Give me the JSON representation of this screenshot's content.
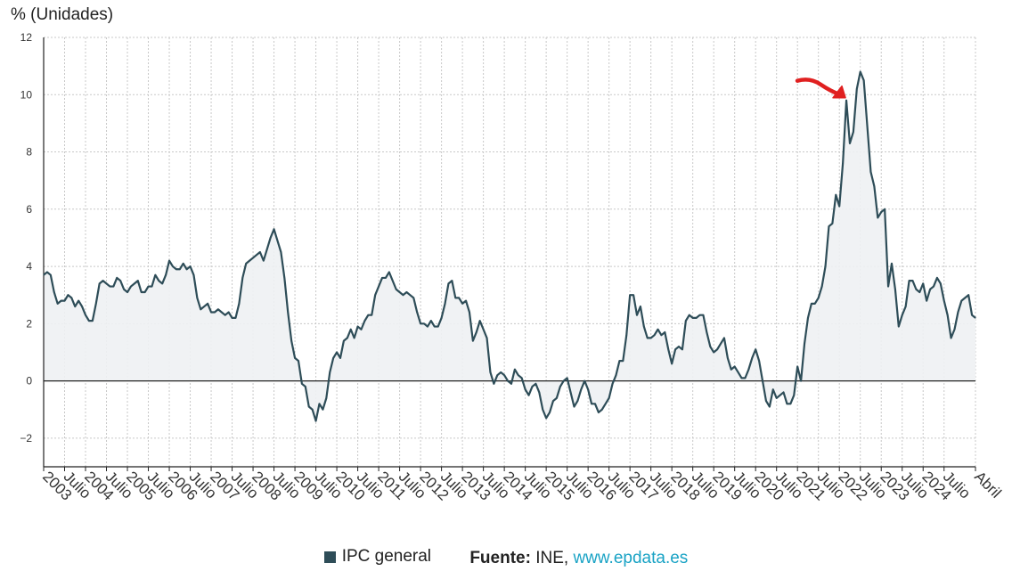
{
  "chart_data": {
    "type": "area",
    "ylabel": "% (Unidades)",
    "ylim": [
      -3,
      12
    ],
    "yticks": [
      -2,
      0,
      2,
      4,
      6,
      8,
      10,
      12
    ],
    "grid": true,
    "legend_position": "bottom",
    "xlim": [
      "2003-01",
      "2025-04"
    ],
    "x_tick_labels": [
      "2003",
      "Julio",
      "2004",
      "Julio",
      "2005",
      "Julio",
      "2006",
      "Julio",
      "2007",
      "Julio",
      "2008",
      "Julio",
      "2009",
      "Julio",
      "2010",
      "Julio",
      "2011",
      "Julio",
      "2012",
      "Julio",
      "2013",
      "Julio",
      "2014",
      "Julio",
      "2015",
      "Julio",
      "2016",
      "Julio",
      "2017",
      "Julio",
      "2018",
      "Julio",
      "2019",
      "Julio",
      "2020",
      "Julio",
      "2021",
      "Julio",
      "2022",
      "Julio",
      "2023",
      "Julio",
      "2024",
      "Julio",
      "Abril"
    ],
    "series": [
      {
        "name": "IPC general",
        "color": "#2e4d58",
        "points": [
          [
            "2003-01",
            3.7
          ],
          [
            "2003-02",
            3.8
          ],
          [
            "2003-03",
            3.7
          ],
          [
            "2003-04",
            3.1
          ],
          [
            "2003-05",
            2.7
          ],
          [
            "2003-06",
            2.8
          ],
          [
            "2003-07",
            2.8
          ],
          [
            "2003-08",
            3.0
          ],
          [
            "2003-09",
            2.9
          ],
          [
            "2003-10",
            2.6
          ],
          [
            "2003-11",
            2.8
          ],
          [
            "2003-12",
            2.6
          ],
          [
            "2004-01",
            2.3
          ],
          [
            "2004-02",
            2.1
          ],
          [
            "2004-03",
            2.1
          ],
          [
            "2004-04",
            2.7
          ],
          [
            "2004-05",
            3.4
          ],
          [
            "2004-06",
            3.5
          ],
          [
            "2004-07",
            3.4
          ],
          [
            "2004-08",
            3.3
          ],
          [
            "2004-09",
            3.3
          ],
          [
            "2004-10",
            3.6
          ],
          [
            "2004-11",
            3.5
          ],
          [
            "2004-12",
            3.2
          ],
          [
            "2005-01",
            3.1
          ],
          [
            "2005-02",
            3.3
          ],
          [
            "2005-03",
            3.4
          ],
          [
            "2005-04",
            3.5
          ],
          [
            "2005-05",
            3.1
          ],
          [
            "2005-06",
            3.1
          ],
          [
            "2005-07",
            3.3
          ],
          [
            "2005-08",
            3.3
          ],
          [
            "2005-09",
            3.7
          ],
          [
            "2005-10",
            3.5
          ],
          [
            "2005-11",
            3.4
          ],
          [
            "2005-12",
            3.7
          ],
          [
            "2006-01",
            4.2
          ],
          [
            "2006-02",
            4.0
          ],
          [
            "2006-03",
            3.9
          ],
          [
            "2006-04",
            3.9
          ],
          [
            "2006-05",
            4.1
          ],
          [
            "2006-06",
            3.9
          ],
          [
            "2006-07",
            4.0
          ],
          [
            "2006-08",
            3.7
          ],
          [
            "2006-09",
            2.9
          ],
          [
            "2006-10",
            2.5
          ],
          [
            "2006-11",
            2.6
          ],
          [
            "2006-12",
            2.7
          ],
          [
            "2007-01",
            2.4
          ],
          [
            "2007-02",
            2.4
          ],
          [
            "2007-03",
            2.5
          ],
          [
            "2007-04",
            2.4
          ],
          [
            "2007-05",
            2.3
          ],
          [
            "2007-06",
            2.4
          ],
          [
            "2007-07",
            2.2
          ],
          [
            "2007-08",
            2.2
          ],
          [
            "2007-09",
            2.7
          ],
          [
            "2007-10",
            3.6
          ],
          [
            "2007-11",
            4.1
          ],
          [
            "2007-12",
            4.2
          ],
          [
            "2008-01",
            4.3
          ],
          [
            "2008-02",
            4.4
          ],
          [
            "2008-03",
            4.5
          ],
          [
            "2008-04",
            4.2
          ],
          [
            "2008-05",
            4.6
          ],
          [
            "2008-06",
            5.0
          ],
          [
            "2008-07",
            5.3
          ],
          [
            "2008-08",
            4.9
          ],
          [
            "2008-09",
            4.5
          ],
          [
            "2008-10",
            3.6
          ],
          [
            "2008-11",
            2.4
          ],
          [
            "2008-12",
            1.4
          ],
          [
            "2009-01",
            0.8
          ],
          [
            "2009-02",
            0.7
          ],
          [
            "2009-03",
            -0.1
          ],
          [
            "2009-04",
            -0.2
          ],
          [
            "2009-05",
            -0.9
          ],
          [
            "2009-06",
            -1.0
          ],
          [
            "2009-07",
            -1.4
          ],
          [
            "2009-08",
            -0.8
          ],
          [
            "2009-09",
            -1.0
          ],
          [
            "2009-10",
            -0.6
          ],
          [
            "2009-11",
            0.3
          ],
          [
            "2009-12",
            0.8
          ],
          [
            "2010-01",
            1.0
          ],
          [
            "2010-02",
            0.8
          ],
          [
            "2010-03",
            1.4
          ],
          [
            "2010-04",
            1.5
          ],
          [
            "2010-05",
            1.8
          ],
          [
            "2010-06",
            1.5
          ],
          [
            "2010-07",
            1.9
          ],
          [
            "2010-08",
            1.8
          ],
          [
            "2010-09",
            2.1
          ],
          [
            "2010-10",
            2.3
          ],
          [
            "2010-11",
            2.3
          ],
          [
            "2010-12",
            3.0
          ],
          [
            "2011-01",
            3.3
          ],
          [
            "2011-02",
            3.6
          ],
          [
            "2011-03",
            3.6
          ],
          [
            "2011-04",
            3.8
          ],
          [
            "2011-05",
            3.5
          ],
          [
            "2011-06",
            3.2
          ],
          [
            "2011-07",
            3.1
          ],
          [
            "2011-08",
            3.0
          ],
          [
            "2011-09",
            3.1
          ],
          [
            "2011-10",
            3.0
          ],
          [
            "2011-11",
            2.9
          ],
          [
            "2011-12",
            2.4
          ],
          [
            "2012-01",
            2.0
          ],
          [
            "2012-02",
            2.0
          ],
          [
            "2012-03",
            1.9
          ],
          [
            "2012-04",
            2.1
          ],
          [
            "2012-05",
            1.9
          ],
          [
            "2012-06",
            1.9
          ],
          [
            "2012-07",
            2.2
          ],
          [
            "2012-08",
            2.7
          ],
          [
            "2012-09",
            3.4
          ],
          [
            "2012-10",
            3.5
          ],
          [
            "2012-11",
            2.9
          ],
          [
            "2012-12",
            2.9
          ],
          [
            "2013-01",
            2.7
          ],
          [
            "2013-02",
            2.8
          ],
          [
            "2013-03",
            2.4
          ],
          [
            "2013-04",
            1.4
          ],
          [
            "2013-05",
            1.7
          ],
          [
            "2013-06",
            2.1
          ],
          [
            "2013-07",
            1.8
          ],
          [
            "2013-08",
            1.5
          ],
          [
            "2013-09",
            0.3
          ],
          [
            "2013-10",
            -0.1
          ],
          [
            "2013-11",
            0.2
          ],
          [
            "2013-12",
            0.3
          ],
          [
            "2014-01",
            0.2
          ],
          [
            "2014-02",
            0.0
          ],
          [
            "2014-03",
            -0.1
          ],
          [
            "2014-04",
            0.4
          ],
          [
            "2014-05",
            0.2
          ],
          [
            "2014-06",
            0.1
          ],
          [
            "2014-07",
            -0.3
          ],
          [
            "2014-08",
            -0.5
          ],
          [
            "2014-09",
            -0.2
          ],
          [
            "2014-10",
            -0.1
          ],
          [
            "2014-11",
            -0.4
          ],
          [
            "2014-12",
            -1.0
          ],
          [
            "2015-01",
            -1.3
          ],
          [
            "2015-02",
            -1.1
          ],
          [
            "2015-03",
            -0.7
          ],
          [
            "2015-04",
            -0.6
          ],
          [
            "2015-05",
            -0.2
          ],
          [
            "2015-06",
            0.0
          ],
          [
            "2015-07",
            0.1
          ],
          [
            "2015-08",
            -0.4
          ],
          [
            "2015-09",
            -0.9
          ],
          [
            "2015-10",
            -0.7
          ],
          [
            "2015-11",
            -0.3
          ],
          [
            "2015-12",
            0.0
          ],
          [
            "2016-01",
            -0.3
          ],
          [
            "2016-02",
            -0.8
          ],
          [
            "2016-03",
            -0.8
          ],
          [
            "2016-04",
            -1.1
          ],
          [
            "2016-05",
            -1.0
          ],
          [
            "2016-06",
            -0.8
          ],
          [
            "2016-07",
            -0.6
          ],
          [
            "2016-08",
            -0.1
          ],
          [
            "2016-09",
            0.2
          ],
          [
            "2016-10",
            0.7
          ],
          [
            "2016-11",
            0.7
          ],
          [
            "2016-12",
            1.6
          ],
          [
            "2017-01",
            3.0
          ],
          [
            "2017-02",
            3.0
          ],
          [
            "2017-03",
            2.3
          ],
          [
            "2017-04",
            2.6
          ],
          [
            "2017-05",
            1.9
          ],
          [
            "2017-06",
            1.5
          ],
          [
            "2017-07",
            1.5
          ],
          [
            "2017-08",
            1.6
          ],
          [
            "2017-09",
            1.8
          ],
          [
            "2017-10",
            1.6
          ],
          [
            "2017-11",
            1.7
          ],
          [
            "2017-12",
            1.1
          ],
          [
            "2018-01",
            0.6
          ],
          [
            "2018-02",
            1.1
          ],
          [
            "2018-03",
            1.2
          ],
          [
            "2018-04",
            1.1
          ],
          [
            "2018-05",
            2.1
          ],
          [
            "2018-06",
            2.3
          ],
          [
            "2018-07",
            2.2
          ],
          [
            "2018-08",
            2.2
          ],
          [
            "2018-09",
            2.3
          ],
          [
            "2018-10",
            2.3
          ],
          [
            "2018-11",
            1.7
          ],
          [
            "2018-12",
            1.2
          ],
          [
            "2019-01",
            1.0
          ],
          [
            "2019-02",
            1.1
          ],
          [
            "2019-03",
            1.3
          ],
          [
            "2019-04",
            1.5
          ],
          [
            "2019-05",
            0.8
          ],
          [
            "2019-06",
            0.4
          ],
          [
            "2019-07",
            0.5
          ],
          [
            "2019-08",
            0.3
          ],
          [
            "2019-09",
            0.1
          ],
          [
            "2019-10",
            0.1
          ],
          [
            "2019-11",
            0.4
          ],
          [
            "2019-12",
            0.8
          ],
          [
            "2020-01",
            1.1
          ],
          [
            "2020-02",
            0.7
          ],
          [
            "2020-03",
            0.0
          ],
          [
            "2020-04",
            -0.7
          ],
          [
            "2020-05",
            -0.9
          ],
          [
            "2020-06",
            -0.3
          ],
          [
            "2020-07",
            -0.6
          ],
          [
            "2020-08",
            -0.5
          ],
          [
            "2020-09",
            -0.4
          ],
          [
            "2020-10",
            -0.8
          ],
          [
            "2020-11",
            -0.8
          ],
          [
            "2020-12",
            -0.5
          ],
          [
            "2021-01",
            0.5
          ],
          [
            "2021-02",
            0.0
          ],
          [
            "2021-03",
            1.3
          ],
          [
            "2021-04",
            2.2
          ],
          [
            "2021-05",
            2.7
          ],
          [
            "2021-06",
            2.7
          ],
          [
            "2021-07",
            2.9
          ],
          [
            "2021-08",
            3.3
          ],
          [
            "2021-09",
            4.0
          ],
          [
            "2021-10",
            5.4
          ],
          [
            "2021-11",
            5.5
          ],
          [
            "2021-12",
            6.5
          ],
          [
            "2022-01",
            6.1
          ],
          [
            "2022-02",
            7.6
          ],
          [
            "2022-03",
            9.8
          ],
          [
            "2022-04",
            8.3
          ],
          [
            "2022-05",
            8.7
          ],
          [
            "2022-06",
            10.2
          ],
          [
            "2022-07",
            10.8
          ],
          [
            "2022-08",
            10.5
          ],
          [
            "2022-09",
            8.9
          ],
          [
            "2022-10",
            7.3
          ],
          [
            "2022-11",
            6.8
          ],
          [
            "2022-12",
            5.7
          ],
          [
            "2023-01",
            5.9
          ],
          [
            "2023-02",
            6.0
          ],
          [
            "2023-03",
            3.3
          ],
          [
            "2023-04",
            4.1
          ],
          [
            "2023-05",
            3.2
          ],
          [
            "2023-06",
            1.9
          ],
          [
            "2023-07",
            2.3
          ],
          [
            "2023-08",
            2.6
          ],
          [
            "2023-09",
            3.5
          ],
          [
            "2023-10",
            3.5
          ],
          [
            "2023-11",
            3.2
          ],
          [
            "2023-12",
            3.1
          ],
          [
            "2024-01",
            3.4
          ],
          [
            "2024-02",
            2.8
          ],
          [
            "2024-03",
            3.2
          ],
          [
            "2024-04",
            3.3
          ],
          [
            "2024-05",
            3.6
          ],
          [
            "2024-06",
            3.4
          ],
          [
            "2024-07",
            2.8
          ],
          [
            "2024-08",
            2.3
          ],
          [
            "2024-09",
            1.5
          ],
          [
            "2024-10",
            1.8
          ],
          [
            "2024-11",
            2.4
          ],
          [
            "2024-12",
            2.8
          ],
          [
            "2025-01",
            2.9
          ],
          [
            "2025-02",
            3.0
          ],
          [
            "2025-03",
            2.3
          ],
          [
            "2025-04",
            2.2
          ]
        ]
      }
    ],
    "annotations": [
      {
        "type": "arrow",
        "color": "#e02020",
        "points_to": "2022-03"
      }
    ]
  },
  "legend": {
    "series_label": "IPC general",
    "series_color": "#2e4d58"
  },
  "source": {
    "label": "Fuente:",
    "name": "INE,",
    "link": "www.epdata.es"
  },
  "colors": {
    "line": "#2e4d58",
    "area_fill": "#eef1f3",
    "grid": "#c8c8c8",
    "zero_line": "#222222",
    "link": "#1aa3c5"
  }
}
